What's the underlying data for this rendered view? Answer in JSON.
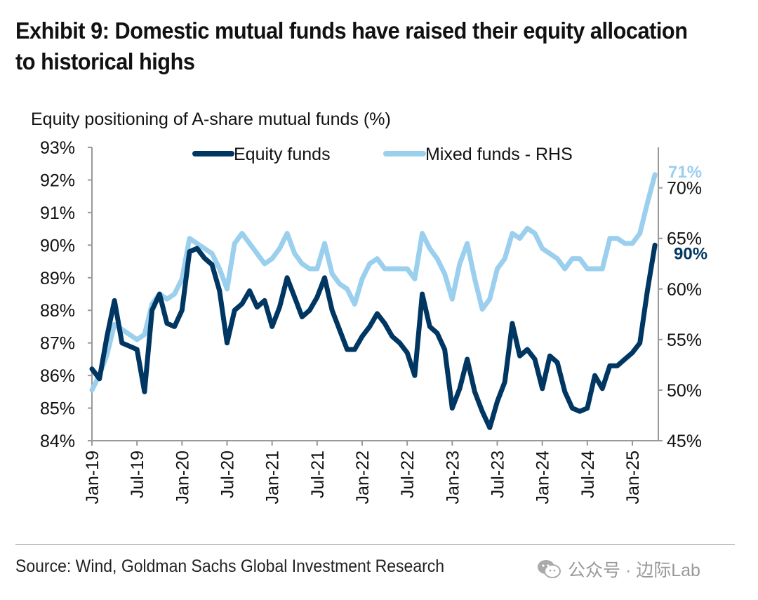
{
  "title": "Exhibit 9: Domestic mutual funds have raised their equity allocation to historical highs",
  "title_lines": [
    "Exhibit 9: Domestic mutual funds have raised their equity allocation",
    "to historical highs"
  ],
  "source": "Source: Wind, Goldman Sachs Global Investment Research",
  "watermark": {
    "text": "公众号 · 边际Lab",
    "icon": "wechat-icon"
  },
  "chart_data": {
    "type": "line",
    "title": "Equity positioning of A-share mutual funds (%)",
    "grid": false,
    "legend_placement": "top",
    "x_tick_labels": [
      "Jan-19",
      "Jul-19",
      "Jan-20",
      "Jul-20",
      "Jan-21",
      "Jul-21",
      "Jan-22",
      "Jul-22",
      "Jan-23",
      "Jul-23",
      "Jan-24",
      "Jul-24",
      "Jan-25"
    ],
    "x_start": "2019-01",
    "x_end": "2025-04",
    "yleft": {
      "range": [
        84,
        93
      ],
      "ticks": [
        "84%",
        "85%",
        "86%",
        "87%",
        "88%",
        "89%",
        "90%",
        "91%",
        "92%",
        "93%"
      ]
    },
    "yright": {
      "range": [
        45,
        74
      ],
      "ticks": [
        "45%",
        "50%",
        "55%",
        "60%",
        "65%",
        "70%"
      ]
    },
    "series": [
      {
        "name": "Equity funds",
        "axis": "left",
        "color": "#003662",
        "end_label": "90%",
        "values": [
          86.2,
          85.9,
          87.2,
          88.3,
          87.0,
          86.9,
          86.8,
          85.5,
          88.0,
          88.5,
          87.6,
          87.5,
          88.0,
          89.8,
          89.9,
          89.6,
          89.4,
          88.6,
          87.0,
          88.0,
          88.2,
          88.6,
          88.1,
          88.3,
          87.5,
          88.1,
          89.0,
          88.4,
          87.8,
          88.0,
          88.4,
          89.0,
          88.0,
          87.4,
          86.8,
          86.8,
          87.2,
          87.5,
          87.9,
          87.6,
          87.2,
          87.0,
          86.7,
          86.0,
          88.5,
          87.5,
          87.3,
          86.8,
          85.0,
          85.6,
          86.5,
          85.5,
          84.9,
          84.4,
          85.2,
          85.8,
          87.6,
          86.6,
          86.8,
          86.5,
          85.6,
          86.6,
          86.4,
          85.5,
          85.0,
          84.9,
          85.0,
          86.0,
          85.6,
          86.3,
          86.3,
          86.5,
          86.7,
          87.0,
          88.6,
          90.0
        ]
      },
      {
        "name": "Mixed funds - RHS",
        "axis": "right",
        "color": "#9bcfee",
        "end_label": "71%",
        "values": [
          50,
          51.5,
          53.5,
          56.5,
          56,
          55.5,
          55,
          55.5,
          58.5,
          59.5,
          59,
          59.5,
          61,
          65,
          64.5,
          64,
          63.5,
          62,
          60,
          64.5,
          65.5,
          64.5,
          63.5,
          62.5,
          63,
          64,
          65.5,
          63.5,
          62.5,
          62,
          62,
          64.5,
          61.5,
          60.5,
          60,
          58.5,
          61,
          62.5,
          63,
          62,
          62,
          62,
          62,
          61,
          65.5,
          64,
          63,
          61.5,
          59,
          62.5,
          64.5,
          61,
          58,
          59,
          62,
          63,
          65.5,
          65,
          66,
          65.5,
          64,
          63.5,
          63,
          62,
          63,
          63,
          62,
          62,
          62,
          65,
          65,
          64.5,
          64.5,
          65.5,
          68.5,
          71.3
        ]
      }
    ]
  }
}
